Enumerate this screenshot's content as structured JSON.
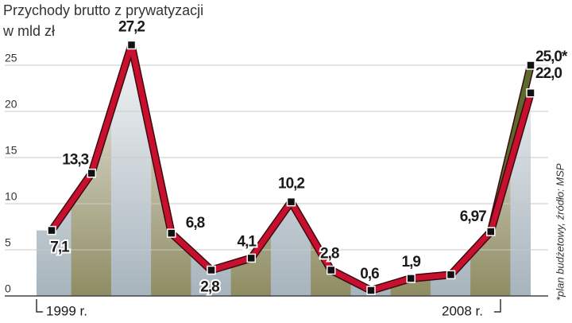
{
  "chart_data": {
    "type": "line",
    "title": "Przychody brutto z prywatyzacji",
    "subtitle": "w mld zł",
    "note": "*plan budżetowy, źródło: MSP",
    "categories": [
      "1999 r.",
      null,
      null,
      null,
      null,
      null,
      null,
      null,
      null,
      null,
      null,
      "2008 r.",
      null
    ],
    "series": [
      {
        "color": "#c8102e",
        "values": [
          7.1,
          13.3,
          27.2,
          6.8,
          2.8,
          4.1,
          10.2,
          2.8,
          0.6,
          1.9,
          2.3,
          6.97,
          22.0
        ],
        "value_labels": [
          "7,1",
          "13,3",
          "27,2",
          "6,8",
          "2,8",
          "4,1",
          "10,2",
          "2,8",
          "0,6",
          "1,9",
          null,
          "6,97",
          "22,0"
        ]
      },
      {
        "color": "#5b6b2c",
        "values": [
          null,
          null,
          null,
          null,
          null,
          null,
          null,
          null,
          null,
          null,
          null,
          6.97,
          25.0
        ],
        "value_labels": [
          null,
          null,
          null,
          null,
          null,
          null,
          null,
          null,
          null,
          null,
          null,
          null,
          "25,0*"
        ]
      }
    ],
    "ylim": [
      0,
      25
    ],
    "yticks": [
      0,
      5,
      10,
      15,
      20,
      25
    ],
    "grid": true
  }
}
